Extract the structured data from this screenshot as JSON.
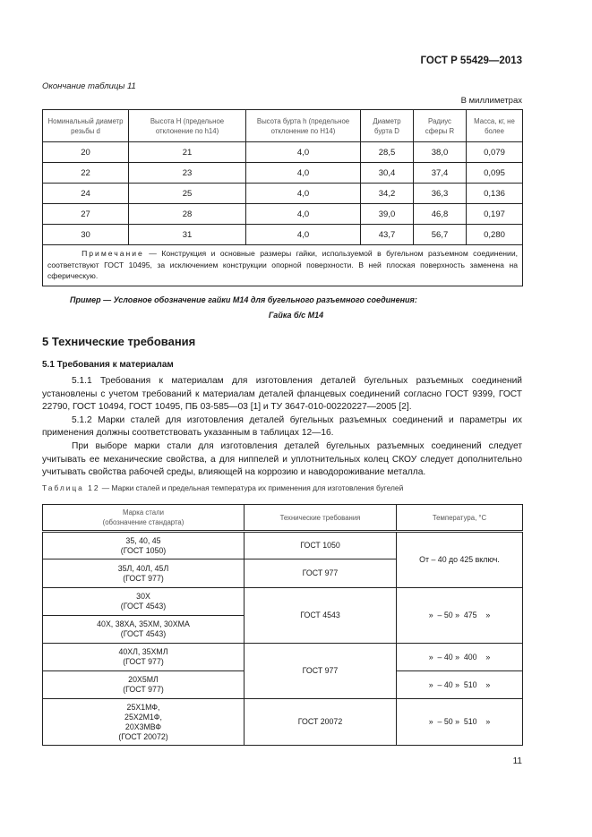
{
  "header": "ГОСТ Р 55429—2013",
  "table11": {
    "continuation": "Окончание таблицы 11",
    "units": "В миллиметрах",
    "columns": [
      "Номинальный диаметр резьбы d",
      "Высота H (предельное отклонение по h14)",
      "Высота бурта h (предельное отклонение по H14)",
      "Диаметр бурта D",
      "Радиус сферы R",
      "Масса, кг, не более"
    ],
    "rows": [
      [
        "20",
        "21",
        "4,0",
        "28,5",
        "38,0",
        "0,079"
      ],
      [
        "22",
        "23",
        "4,0",
        "30,4",
        "37,4",
        "0,095"
      ],
      [
        "24",
        "25",
        "4,0",
        "34,2",
        "36,3",
        "0,136"
      ],
      [
        "27",
        "28",
        "4,0",
        "39,0",
        "46,8",
        "0,197"
      ],
      [
        "30",
        "31",
        "4,0",
        "43,7",
        "56,7",
        "0,280"
      ]
    ],
    "note_label": "Примечание",
    "note_text": " — Конструкция и основные размеры гайки, используемой в бугельном разъемном соединении, соответствуют ГОСТ 10495, за исключением конструкции опорной поверхности. В ней плоская поверхность заменена на сферическую."
  },
  "example": {
    "line1": "Пример — Условное обозначение гайки М14 для бугельного разъемного соединения:",
    "line2": "Гайка б/с М14"
  },
  "section5": {
    "title": "5 Технические требования",
    "sub": "5.1 Требования к материалам",
    "paragraphs": [
      "5.1.1 Требования к материалам для изготовления деталей бугельных разъемных соединений установлены с учетом требований к материалам деталей фланцевых соединений согласно ГОСТ 9399, ГОСТ 22790, ГОСТ 10494, ГОСТ 10495, ПБ 03-585—03 [1] и ТУ 3647-010-00220227—2005 [2].",
      "5.1.2 Марки сталей для изготовления деталей бугельных разъемных соединений и параметры их применения должны соответствовать указанным в таблицах 12—16.",
      "При выборе марки стали для изготовления деталей бугельных разъемных соединений следует учитывать ее механические свойства, а для ниппелей и уплотнительных колец СКОУ следует дополнительно учитывать свойства рабочей среды, влияющей на коррозию и наводороживание металла."
    ]
  },
  "table12": {
    "caption_label": "Таблица 12",
    "caption_text": " — Марки сталей и предельная температура их применения для изготовления бугелей",
    "columns": [
      "Марка стали\n(обозначение стандарта)",
      "Технические требования",
      "Температура, °С"
    ],
    "grades": [
      "35, 40, 45\n(ГОСТ 1050)",
      "35Л, 40Л, 45Л\n(ГОСТ 977)",
      "30Х\n(ГОСТ 4543)",
      "40Х, 38ХА, 35ХМ, 30ХМА\n(ГОСТ 4543)",
      "40ХЛ, 35ХМЛ\n(ГОСТ 977)",
      "20Х5МЛ\n(ГОСТ 977)",
      "25Х1МФ,\n25Х2М1Ф,\n20Х3МВФ\n(ГОСТ 20072)"
    ],
    "requirements": [
      "ГОСТ 1050",
      "ГОСТ 977",
      "ГОСТ 4543",
      "ГОСТ 977",
      "ГОСТ 20072"
    ],
    "temperatures": [
      "От – 40 до 425 включ.",
      "»  – 50 »  475    »",
      "»  – 40 »  400    »",
      "»  – 40 »  510    »",
      "»  – 50 »  510    »"
    ]
  },
  "page_number": "11"
}
